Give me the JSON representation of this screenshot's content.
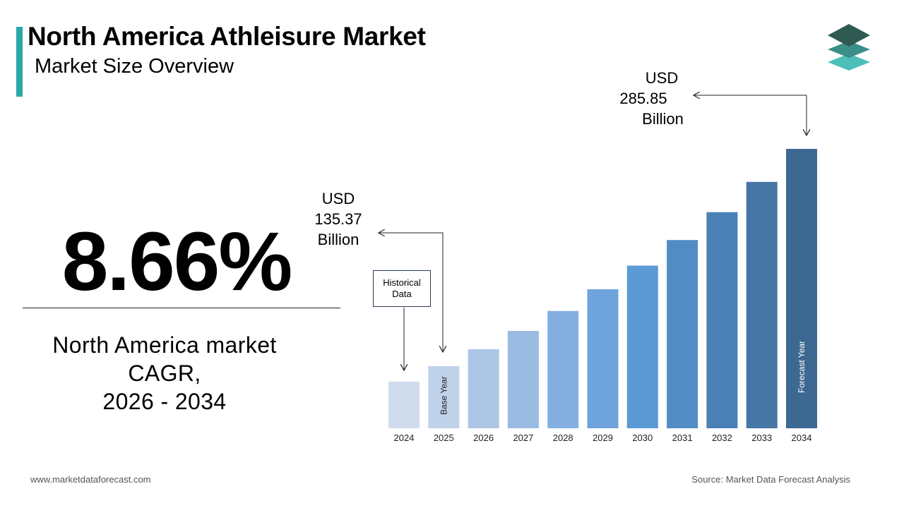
{
  "header": {
    "title": "North America Athleisure Market",
    "subtitle": "Market Size Overview"
  },
  "highlight": {
    "cagr_value": "8.66%",
    "caption_line1": "North America market",
    "caption_line2": "CAGR,",
    "caption_line3": "2026 - 2034"
  },
  "annotations": {
    "value_2025": {
      "line1": "USD",
      "line2": "135.37",
      "line3": "Billion"
    },
    "value_2034": {
      "line1": "USD",
      "line2": "285.85",
      "line3": "Billion"
    },
    "historical_line1": "Historical",
    "historical_line2": "Data",
    "base_year": "Base Year",
    "forecast_year": "Forecast Year"
  },
  "footer": {
    "website": "www.marketdataforecast.com",
    "source": "Source: Market Data Forecast Analysis"
  },
  "colors": {
    "accent": "#2aa8a8",
    "bars": [
      "#d0dcec",
      "#c0d2ea",
      "#adc6e6",
      "#9bbce2",
      "#83b0e0",
      "#6ea4db",
      "#5c9ad6",
      "#528cc4",
      "#4a80b6",
      "#4676a6",
      "#3d6892"
    ]
  },
  "chart_data": {
    "type": "bar",
    "categories": [
      "2024",
      "2025",
      "2026",
      "2027",
      "2028",
      "2029",
      "2030",
      "2031",
      "2032",
      "2033",
      "2034"
    ],
    "values": [
      124.6,
      135.37,
      147.1,
      159.8,
      173.6,
      188.6,
      205.0,
      222.7,
      242.0,
      263.0,
      285.85
    ],
    "title": "North America Athleisure Market",
    "subtitle": "Market Size Overview",
    "xlabel": "",
    "ylabel": "",
    "unit": "USD Billion",
    "cagr": "8.66%",
    "ylim": [
      0,
      285.85
    ],
    "grid": false,
    "legend": "none"
  }
}
